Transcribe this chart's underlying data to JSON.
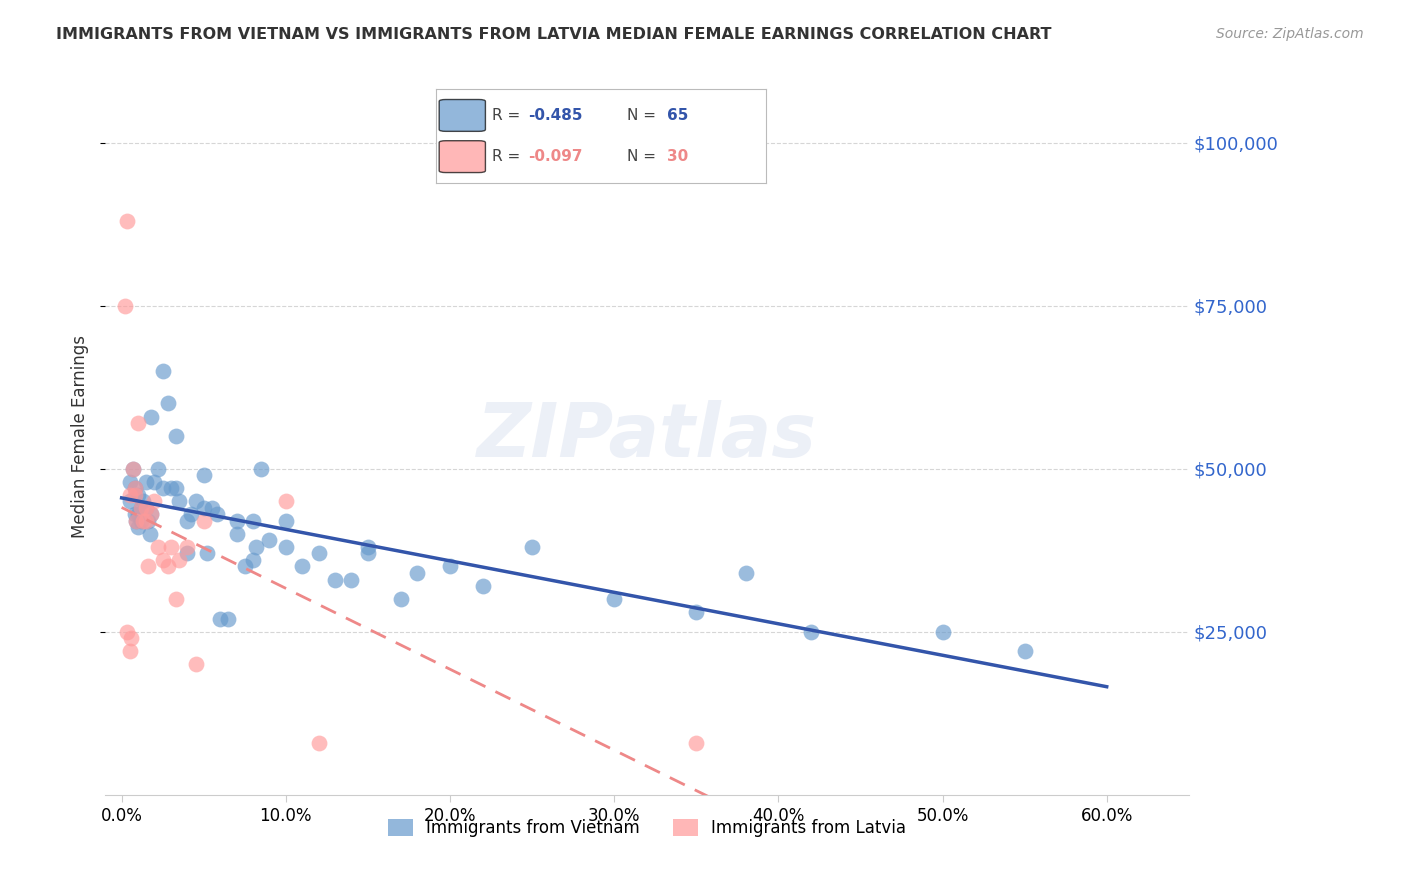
{
  "title": "IMMIGRANTS FROM VIETNAM VS IMMIGRANTS FROM LATVIA MEDIAN FEMALE EARNINGS CORRELATION CHART",
  "source": "Source: ZipAtlas.com",
  "ylabel": "Median Female Earnings",
  "xlabel_ticks": [
    "0.0%",
    "10.0%",
    "20.0%",
    "30.0%",
    "40.0%",
    "50.0%",
    "60.0%"
  ],
  "xlabel_vals": [
    0.0,
    0.1,
    0.2,
    0.3,
    0.4,
    0.5,
    0.6
  ],
  "ytick_labels": [
    "$25,000",
    "$50,000",
    "$75,000",
    "$100,000"
  ],
  "ytick_vals": [
    25000,
    50000,
    75000,
    100000
  ],
  "ylim": [
    0,
    110000
  ],
  "xlim": [
    -0.01,
    0.65
  ],
  "legend_blue_label": "Immigrants from Vietnam",
  "legend_pink_label": "Immigrants from Latvia",
  "legend_blue_R": "-0.485",
  "legend_blue_N": "65",
  "legend_pink_R": "-0.097",
  "legend_pink_N": "30",
  "watermark": "ZIPatlas",
  "blue_color": "#6699CC",
  "pink_color": "#FF9999",
  "line_blue_color": "#3355AA",
  "line_pink_color": "#EE8888",
  "title_color": "#333333",
  "axis_label_color": "#3366CC",
  "vietnam_x": [
    0.005,
    0.005,
    0.007,
    0.008,
    0.008,
    0.009,
    0.01,
    0.01,
    0.01,
    0.012,
    0.012,
    0.013,
    0.015,
    0.015,
    0.016,
    0.017,
    0.018,
    0.018,
    0.02,
    0.022,
    0.025,
    0.025,
    0.028,
    0.03,
    0.033,
    0.033,
    0.035,
    0.04,
    0.04,
    0.042,
    0.045,
    0.05,
    0.05,
    0.052,
    0.055,
    0.058,
    0.06,
    0.065,
    0.07,
    0.07,
    0.075,
    0.08,
    0.08,
    0.082,
    0.085,
    0.09,
    0.1,
    0.1,
    0.11,
    0.12,
    0.13,
    0.14,
    0.15,
    0.15,
    0.17,
    0.18,
    0.2,
    0.22,
    0.25,
    0.3,
    0.35,
    0.38,
    0.42,
    0.5,
    0.55
  ],
  "vietnam_y": [
    48000,
    45000,
    50000,
    47000,
    43000,
    42000,
    46000,
    43000,
    41000,
    44000,
    42000,
    45000,
    48000,
    44000,
    42000,
    40000,
    43000,
    58000,
    48000,
    50000,
    65000,
    47000,
    60000,
    47000,
    55000,
    47000,
    45000,
    42000,
    37000,
    43000,
    45000,
    49000,
    44000,
    37000,
    44000,
    43000,
    27000,
    27000,
    40000,
    42000,
    35000,
    42000,
    36000,
    38000,
    50000,
    39000,
    42000,
    38000,
    35000,
    37000,
    33000,
    33000,
    37000,
    38000,
    30000,
    34000,
    35000,
    32000,
    38000,
    30000,
    28000,
    34000,
    25000,
    25000,
    22000
  ],
  "latvia_x": [
    0.002,
    0.003,
    0.003,
    0.005,
    0.005,
    0.006,
    0.007,
    0.008,
    0.008,
    0.009,
    0.01,
    0.012,
    0.013,
    0.015,
    0.015,
    0.016,
    0.018,
    0.02,
    0.022,
    0.025,
    0.028,
    0.03,
    0.033,
    0.035,
    0.04,
    0.045,
    0.05,
    0.1,
    0.12,
    0.35
  ],
  "latvia_y": [
    75000,
    88000,
    25000,
    46000,
    22000,
    24000,
    50000,
    47000,
    46000,
    42000,
    57000,
    44000,
    42000,
    42000,
    44000,
    35000,
    43000,
    45000,
    38000,
    36000,
    35000,
    38000,
    30000,
    36000,
    38000,
    20000,
    42000,
    45000,
    8000,
    8000
  ]
}
